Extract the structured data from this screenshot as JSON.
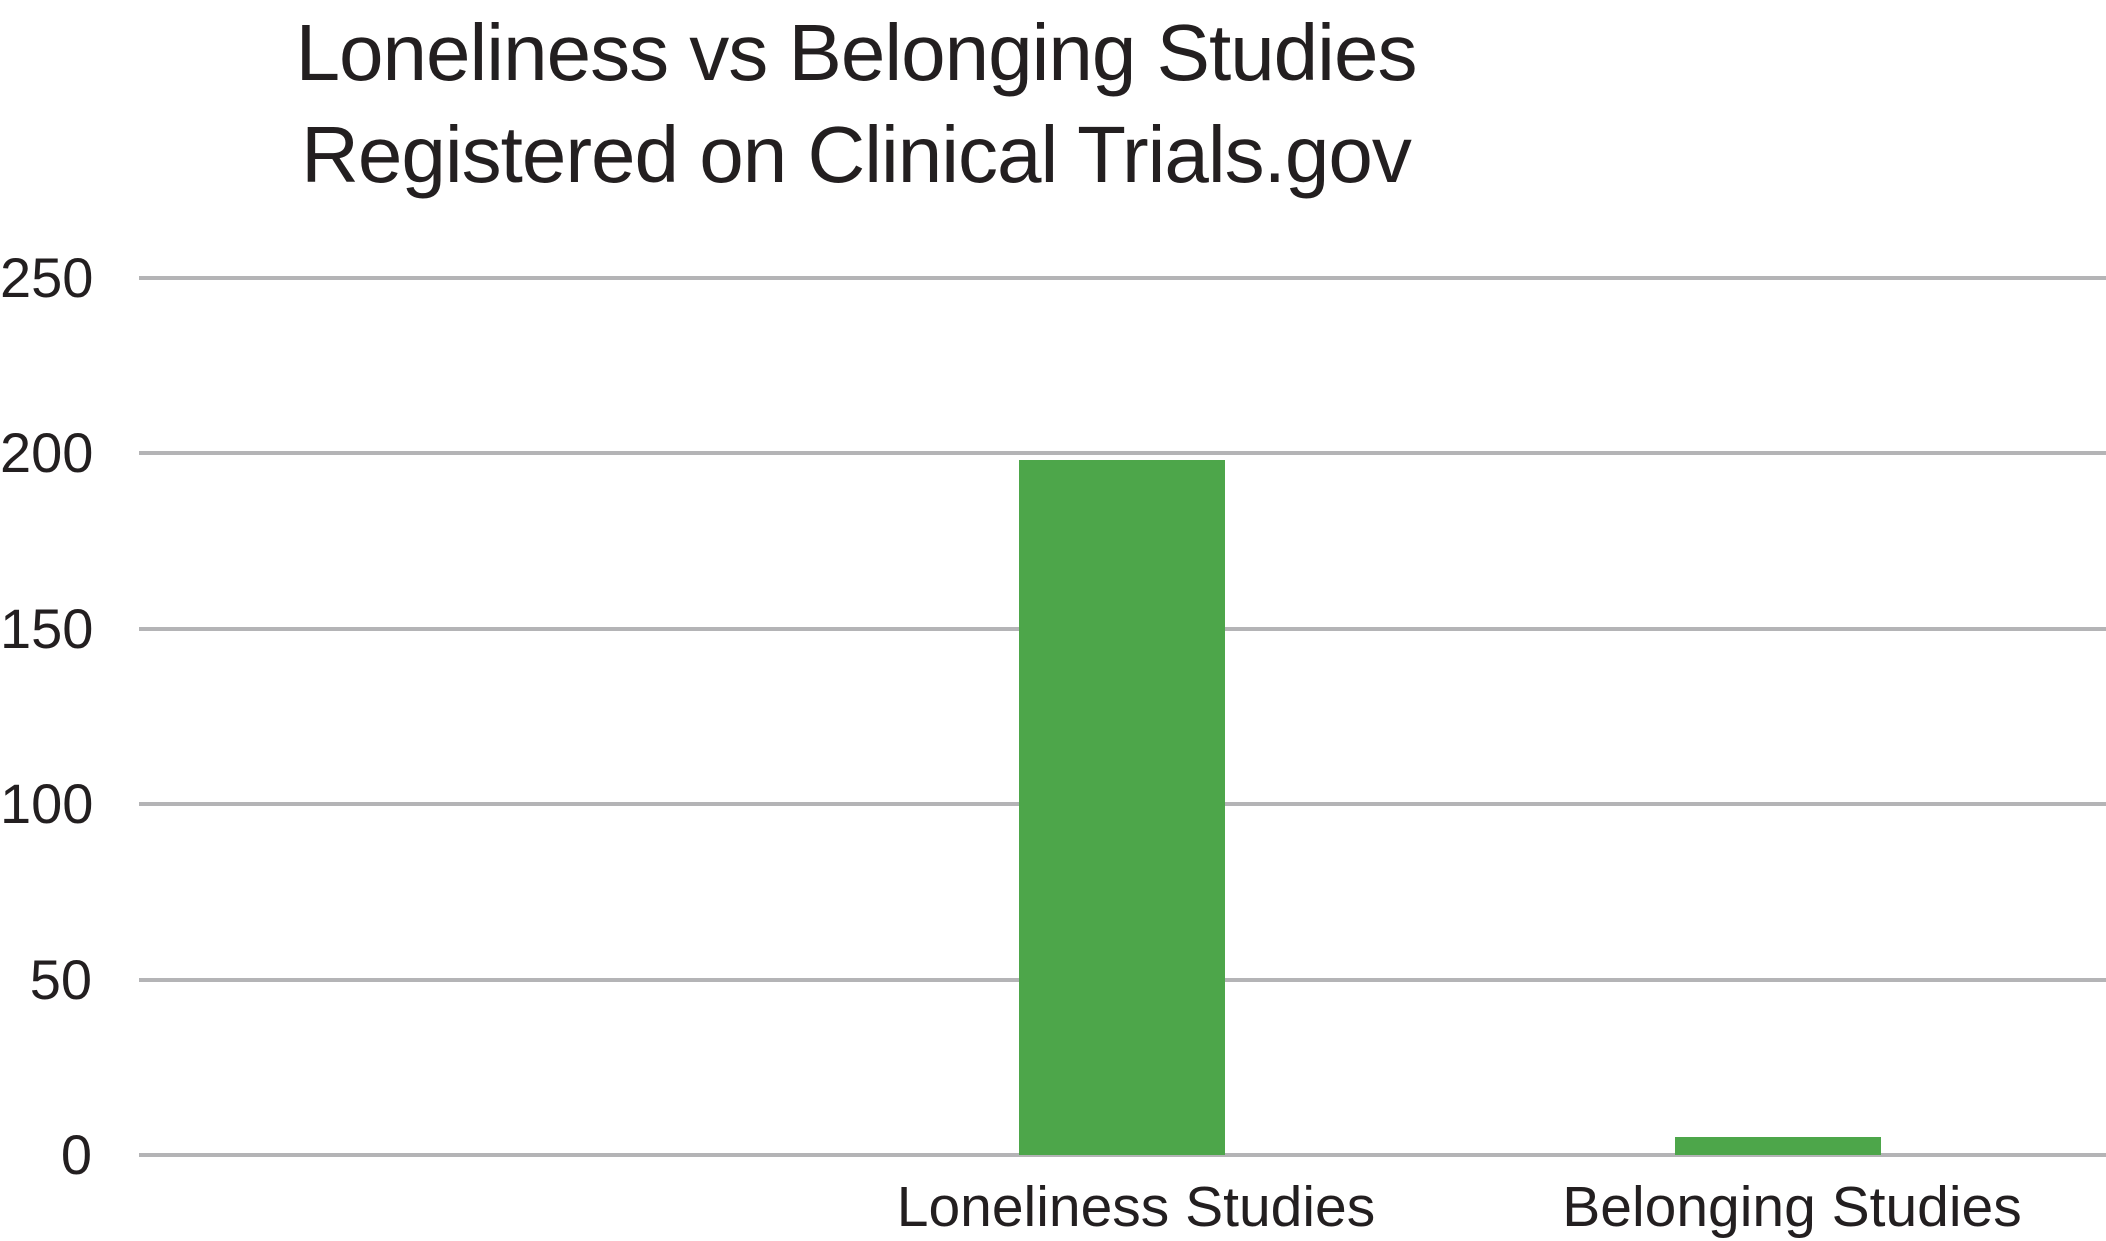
{
  "chart_data": {
    "type": "bar",
    "title": "Loneliness vs Belonging Studies Registered on Clinical Trials.gov",
    "title_lines": [
      "Loneliness vs Belonging Studies",
      "Registered on Clinical Trials.gov"
    ],
    "categories": [
      "Loneliness Studies",
      "Belonging Studies"
    ],
    "values": [
      198,
      5
    ],
    "yticks": [
      0,
      50,
      100,
      150,
      200,
      250
    ],
    "ylim": [
      0,
      250
    ],
    "xlabel": "",
    "ylabel": "",
    "grid": "horizontal",
    "legend": "none",
    "colors": {
      "bar": "#4DA64A",
      "gridline": "#B4B4B6",
      "text": "#231F20",
      "background": "#FFFFFF"
    }
  }
}
